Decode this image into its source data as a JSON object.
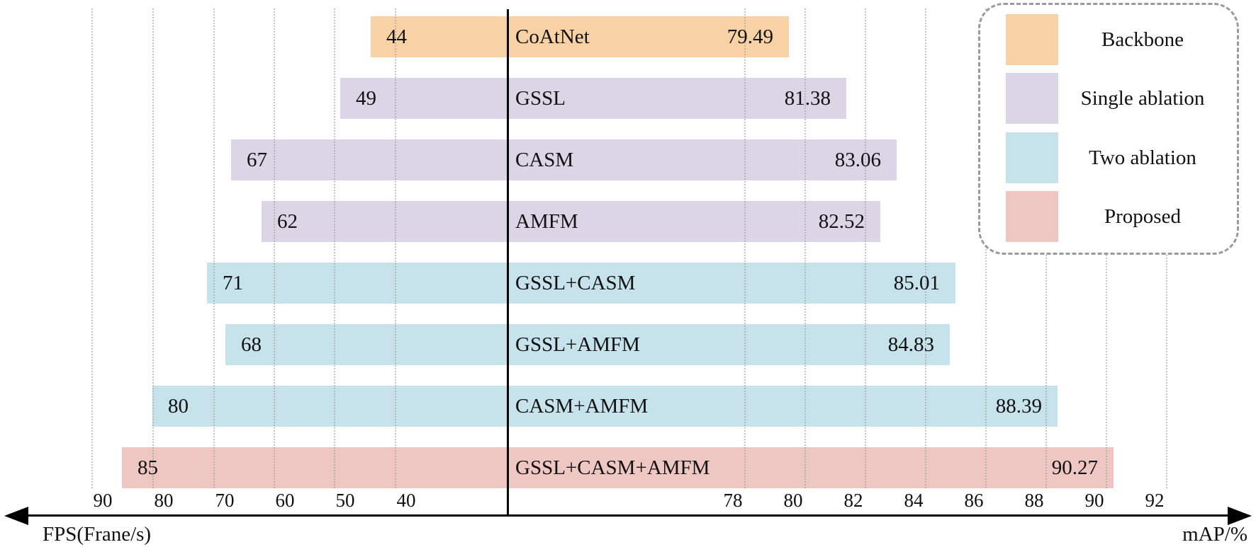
{
  "chart_data": {
    "type": "bar",
    "orientation": "horizontal dual-sided bars diverging from a central vertical axis; FPS grows leftward, mAP grows rightward",
    "title": "",
    "rows": [
      {
        "label": "CoAtNet",
        "group": "Backbone",
        "fps": 44,
        "map": 79.49
      },
      {
        "label": "GSSL",
        "group": "Single ablation",
        "fps": 49,
        "map": 81.38
      },
      {
        "label": "CASM",
        "group": "Single ablation",
        "fps": 67,
        "map": 83.06
      },
      {
        "label": "AMFM",
        "group": "Single ablation",
        "fps": 62,
        "map": 82.52
      },
      {
        "label": "GSSL+CASM",
        "group": "Two ablation",
        "fps": 71,
        "map": 85.01
      },
      {
        "label": "GSSL+AMFM",
        "group": "Two ablation",
        "fps": 68,
        "map": 84.83
      },
      {
        "label": "CASM+AMFM",
        "group": "Two ablation",
        "fps": 80,
        "map": 88.39
      },
      {
        "label": "GSSL+CASM+AMFM",
        "group": "Proposed",
        "fps": 85,
        "map": 90.27
      }
    ],
    "left_axis": {
      "label": "FPS(Frane/s)",
      "ticks": [
        90,
        80,
        70,
        60,
        50,
        40
      ],
      "range_note": "ticks read 90 down to 40 moving toward center"
    },
    "right_axis": {
      "label": "mAP/%",
      "ticks": [
        78,
        80,
        82,
        84,
        86,
        88,
        90,
        92
      ],
      "range_note": "ticks read 78 up to 92 moving right"
    },
    "legend": [
      {
        "label": "Backbone",
        "color": "#F8D2A4"
      },
      {
        "label": "Single ablation",
        "color": "#DBD5E5"
      },
      {
        "label": "Two ablation",
        "color": "#C6E2EA"
      },
      {
        "label": "Proposed",
        "color": "#EFC7C2"
      }
    ],
    "legend_position": "top-right, dashed rounded rectangle",
    "grid": "vertical dotted gridlines at every labeled tick",
    "axis_line_color": "#000000",
    "text_color": "#111111"
  }
}
